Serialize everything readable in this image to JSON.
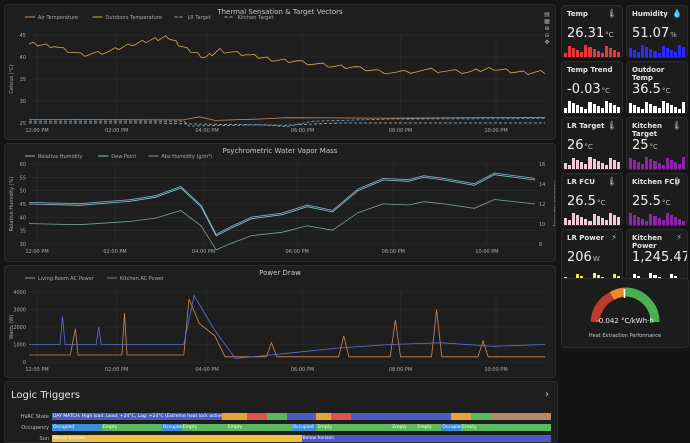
{
  "charts": {
    "thermal": {
      "title": "Thermal Sensation & Target Vectors",
      "ylabel": "Celsius (°C)",
      "yticks": [
        "45",
        "40",
        "35",
        "30",
        "25"
      ],
      "xticks": [
        "12:00 PM",
        "02:00 PM",
        "04:00 PM",
        "06:00 PM",
        "08:00 PM",
        "10:00 PM"
      ],
      "legend": [
        "Air Temperature",
        "Outdoors Temperature",
        "LR Target",
        "Kitchen Target"
      ]
    },
    "psychro": {
      "title": "Psychrometric Water Vapor Mass",
      "ylabel": "Relative Humidity (%)",
      "ylabel2": "Absolute Humidity",
      "yticks": [
        "60",
        "55",
        "50",
        "45",
        "40",
        "35",
        "30"
      ],
      "yticks2": [
        "16",
        "14",
        "12",
        "10",
        "8"
      ],
      "xticks": [
        "12:00 PM",
        "02:00 PM",
        "04:00 PM",
        "06:00 PM",
        "08:00 PM",
        "10:00 PM"
      ],
      "legend": [
        "Relative Humidity",
        "Dew Point",
        "Abs Humidity (g/m³)"
      ]
    },
    "power": {
      "title": "Power Draw",
      "ylabel": "Watts (W)",
      "yticks": [
        "4000",
        "3000",
        "2000",
        "1000",
        "0"
      ],
      "xticks": [
        "12:00 PM",
        "02:00 PM",
        "04:00 PM",
        "06:00 PM",
        "08:00 PM",
        "10:00 PM"
      ],
      "legend": [
        "Living Room AC Power",
        "Kitchen AC Power"
      ]
    }
  },
  "tiles": [
    {
      "title": "Temp",
      "value": "26.31",
      "unit": "°C",
      "icon": "thermometer-icon",
      "icon_glyph": "🌡",
      "color": "#e53935"
    },
    {
      "title": "Humidity",
      "value": "51.07",
      "unit": "%",
      "icon": "droplet-icon",
      "icon_glyph": "💧",
      "color": "#2b2bff"
    },
    {
      "title": "Temp Trend",
      "value": "-0.03",
      "unit": "°C",
      "icon": "",
      "icon_glyph": "",
      "color": "#ffffff"
    },
    {
      "title": "Outdoor Temp",
      "value": "36.5",
      "unit": "°C",
      "icon": "",
      "icon_glyph": "",
      "color": "#ffffff"
    },
    {
      "title": "LR Target",
      "value": "26",
      "unit": "°C",
      "icon": "thermometer-icon",
      "icon_glyph": "🌡",
      "color": "#f4c7d6"
    },
    {
      "title": "Kitchen Target",
      "value": "25",
      "unit": "°C",
      "icon": "thermometer-icon",
      "icon_glyph": "🌡",
      "color": "#8e24aa"
    },
    {
      "title": "LR FCU",
      "value": "26.5",
      "unit": "°C",
      "icon": "thermometer-icon",
      "icon_glyph": "🌡",
      "color": "#f4c7d6"
    },
    {
      "title": "Kitchen FCU",
      "value": "25.5",
      "unit": "°C",
      "icon": "thermometer-icon",
      "icon_glyph": "🌡",
      "color": "#8e24aa"
    },
    {
      "title": "LR Power",
      "value": "206",
      "unit": "W",
      "icon": "bolt-icon",
      "icon_glyph": "⚡",
      "color": "#f7e64a"
    },
    {
      "title": "Kitchen Power",
      "value": "1,245.47",
      "unit": "W",
      "icon": "bolt-icon",
      "icon_glyph": "⚡",
      "color": "#ffffff"
    }
  ],
  "gauge": {
    "value": "-0.042 °C/kWh·h",
    "label": "Heat Extraction Performance"
  },
  "logic": {
    "title": "Logic Triggers",
    "rows": [
      {
        "label": "HVAC State",
        "segments": [
          {
            "text": "DAY MATCH: High load. Lead: +24°C, Lag: +24°C (Extreme heat lock active)",
            "color": "#4a5bc4",
            "w": 34
          },
          {
            "text": "",
            "color": "#e9a23b",
            "w": 5
          },
          {
            "text": "",
            "color": "#d9534f",
            "w": 4
          },
          {
            "text": "",
            "color": "#5cb85c",
            "w": 4
          },
          {
            "text": "",
            "color": "#4a5bc4",
            "w": 6
          },
          {
            "text": "",
            "color": "#e9a23b",
            "w": 3
          },
          {
            "text": "",
            "color": "#d9534f",
            "w": 4
          },
          {
            "text": "",
            "color": "#4a5bc4",
            "w": 20
          },
          {
            "text": "",
            "color": "#e9a23b",
            "w": 4
          },
          {
            "text": "",
            "color": "#5cb85c",
            "w": 4
          },
          {
            "text": "",
            "color": "#b08a6b",
            "w": 12
          }
        ]
      },
      {
        "label": "Occupancy",
        "segments": [
          {
            "text": "Occupied",
            "color": "#3d8ed9",
            "w": 10
          },
          {
            "text": "Empty",
            "color": "#5cb85c",
            "w": 12
          },
          {
            "text": "Occupied",
            "color": "#3d8ed9",
            "w": 4
          },
          {
            "text": "Empty",
            "color": "#5cb85c",
            "w": 9
          },
          {
            "text": "Empty",
            "color": "#5cb85c",
            "w": 13
          },
          {
            "text": "Occupied",
            "color": "#3d8ed9",
            "w": 5
          },
          {
            "text": "Empty",
            "color": "#5cb85c",
            "w": 15
          },
          {
            "text": "Empty",
            "color": "#5cb85c",
            "w": 5
          },
          {
            "text": "Empty",
            "color": "#5cb85c",
            "w": 5
          },
          {
            "text": "Occupied",
            "color": "#3d8ed9",
            "w": 4
          },
          {
            "text": "Empty",
            "color": "#5cb85c",
            "w": 18
          }
        ]
      },
      {
        "label": "Sun",
        "segments": [
          {
            "text": "Above horizon",
            "color": "#f0c040",
            "w": 50
          },
          {
            "text": "Below horizon",
            "color": "#4a5bc4",
            "w": 50
          }
        ]
      }
    ]
  }
}
